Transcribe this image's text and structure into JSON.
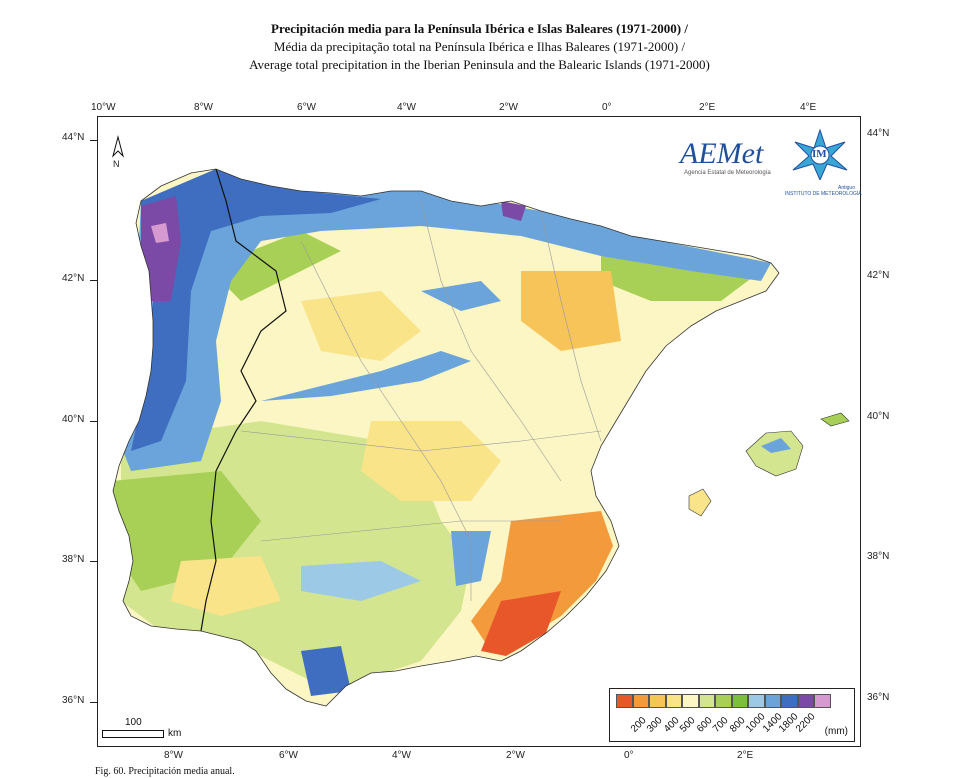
{
  "title": {
    "line1": "Precipitación media para la Península Ibérica e Islas Baleares (1971-2000) /",
    "line2": "Média da precipitação total na Península Ibérica e Ilhas Baleares (1971-2000) /",
    "line3": "Average total precipitation in the Iberian Peninsula and the Balearic Islands (1971-2000)"
  },
  "axes": {
    "top_lon": [
      "10°W",
      "8°W",
      "6°W",
      "4°W",
      "2°W",
      "0°",
      "2°E",
      "4°E"
    ],
    "bottom_lon": [
      "8°W",
      "6°W",
      "4°W",
      "2°W",
      "0°",
      "2°E"
    ],
    "left_lat": [
      "44°N",
      "42°N",
      "40°N",
      "38°N",
      "36°N"
    ],
    "right_lat": [
      "44°N",
      "42°N",
      "40°N",
      "38°N",
      "36°N"
    ]
  },
  "north_label": "N",
  "logos": {
    "aemet_name": "AEMet",
    "aemet_sub": "Agencia Estatal de Meteorología",
    "inm_letters": "IM",
    "inm_sub1": "Antiguo",
    "inm_sub2": "INSTITUTO DE METEOROLOGÍA"
  },
  "legend": {
    "unit": "(mm)",
    "classes": [
      {
        "label": "200",
        "color": "#e8572a"
      },
      {
        "label": "300",
        "color": "#f29a3c"
      },
      {
        "label": "400",
        "color": "#f7c45a"
      },
      {
        "label": "500",
        "color": "#f9e48a"
      },
      {
        "label": "600",
        "color": "#fbf6c4"
      },
      {
        "label": "700",
        "color": "#d3e58f"
      },
      {
        "label": "800",
        "color": "#a8d056"
      },
      {
        "label": "1000",
        "color": "#7bbf3a"
      },
      {
        "label": "1400",
        "color": "#9cc9e6"
      },
      {
        "label": "1800",
        "color": "#6aa4da"
      },
      {
        "label": "2200",
        "color": "#3f6ec0"
      },
      {
        "label": "",
        "color": "#7a4aa6"
      },
      {
        "label": "",
        "color": "#d79ad0"
      }
    ]
  },
  "scale": {
    "value": "100",
    "unit": "km"
  },
  "caption": "Fig. 60. Precipitación media anual."
}
